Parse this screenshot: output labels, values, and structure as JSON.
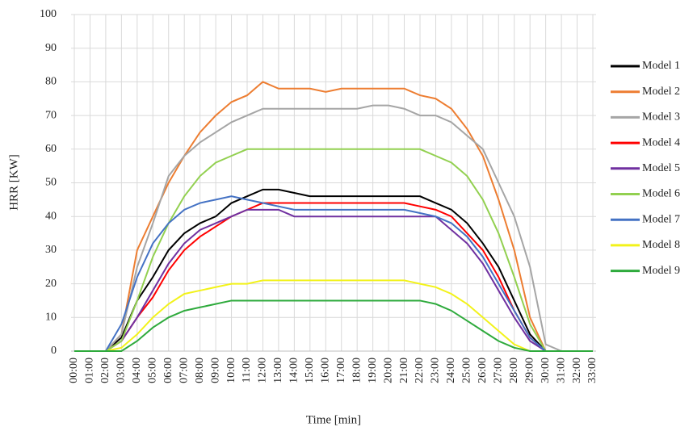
{
  "chart_data": {
    "type": "line",
    "x_label": "Time [min]",
    "y_label": "HRR [KW]",
    "categories": [
      "00:00",
      "01:00",
      "02:00",
      "03:00",
      "04:00",
      "05:00",
      "06:00",
      "07:00",
      "08:00",
      "09:00",
      "10:00",
      "11:00",
      "12:00",
      "13:00",
      "14:00",
      "15:00",
      "16:00",
      "17:00",
      "18:00",
      "19:00",
      "20:00",
      "21:00",
      "22:00",
      "23:00",
      "24:00",
      "25:00",
      "26:00",
      "27:00",
      "28:00",
      "29:00",
      "30:00",
      "31:00",
      "32:00",
      "33:00"
    ],
    "ylim": [
      0,
      100
    ],
    "yticks": [
      0,
      10,
      20,
      30,
      40,
      50,
      60,
      70,
      80,
      90,
      100
    ],
    "grid": true,
    "legend": "right",
    "series": [
      {
        "name": "Model 1",
        "color": "#000000",
        "values": [
          0,
          0,
          0,
          4,
          15,
          22,
          30,
          35,
          38,
          40,
          44,
          46,
          48,
          48,
          47,
          46,
          46,
          46,
          46,
          46,
          46,
          46,
          46,
          44,
          42,
          38,
          32,
          25,
          15,
          5,
          0,
          0,
          0,
          0
        ]
      },
      {
        "name": "Model 2",
        "color": "#ed7d31",
        "values": [
          0,
          0,
          0,
          5,
          30,
          40,
          50,
          58,
          65,
          70,
          74,
          76,
          80,
          78,
          78,
          78,
          77,
          78,
          78,
          78,
          78,
          78,
          76,
          75,
          72,
          66,
          58,
          45,
          30,
          10,
          0,
          0,
          0,
          0
        ]
      },
      {
        "name": "Model 3",
        "color": "#a5a5a5",
        "values": [
          0,
          0,
          0,
          5,
          25,
          38,
          52,
          58,
          62,
          65,
          68,
          70,
          72,
          72,
          72,
          72,
          72,
          72,
          72,
          73,
          73,
          72,
          70,
          70,
          68,
          64,
          60,
          50,
          40,
          25,
          2,
          0,
          0,
          0
        ]
      },
      {
        "name": "Model 4",
        "color": "#ff0000",
        "values": [
          0,
          0,
          0,
          3,
          10,
          16,
          24,
          30,
          34,
          37,
          40,
          42,
          44,
          44,
          44,
          44,
          44,
          44,
          44,
          44,
          44,
          44,
          43,
          42,
          40,
          35,
          30,
          22,
          12,
          4,
          0,
          0,
          0,
          0
        ]
      },
      {
        "name": "Model 5",
        "color": "#7030a0",
        "values": [
          0,
          0,
          0,
          3,
          10,
          18,
          26,
          32,
          36,
          38,
          40,
          42,
          42,
          42,
          40,
          40,
          40,
          40,
          40,
          40,
          40,
          40,
          40,
          40,
          36,
          32,
          26,
          18,
          10,
          3,
          0,
          0,
          0,
          0
        ]
      },
      {
        "name": "Model 6",
        "color": "#92d050",
        "values": [
          0,
          0,
          0,
          3,
          15,
          28,
          38,
          46,
          52,
          56,
          58,
          60,
          60,
          60,
          60,
          60,
          60,
          60,
          60,
          60,
          60,
          60,
          60,
          58,
          56,
          52,
          45,
          35,
          22,
          8,
          0,
          0,
          0,
          0
        ]
      },
      {
        "name": "Model 7",
        "color": "#4472c4",
        "values": [
          0,
          0,
          0,
          8,
          22,
          32,
          38,
          42,
          44,
          45,
          46,
          45,
          44,
          43,
          42,
          42,
          42,
          42,
          42,
          42,
          42,
          42,
          41,
          40,
          38,
          34,
          28,
          20,
          12,
          4,
          0,
          0,
          0,
          0
        ]
      },
      {
        "name": "Model 8",
        "color": "#f2f21a",
        "values": [
          0,
          0,
          0,
          1,
          5,
          10,
          14,
          17,
          18,
          19,
          20,
          20,
          21,
          21,
          21,
          21,
          21,
          21,
          21,
          21,
          21,
          21,
          20,
          19,
          17,
          14,
          10,
          6,
          2,
          0,
          0,
          0,
          0,
          0
        ]
      },
      {
        "name": "Model 9",
        "color": "#2eaa3c",
        "values": [
          0,
          0,
          0,
          0,
          3,
          7,
          10,
          12,
          13,
          14,
          15,
          15,
          15,
          15,
          15,
          15,
          15,
          15,
          15,
          15,
          15,
          15,
          15,
          14,
          12,
          9,
          6,
          3,
          1,
          0,
          0,
          0,
          0,
          0
        ]
      }
    ]
  }
}
